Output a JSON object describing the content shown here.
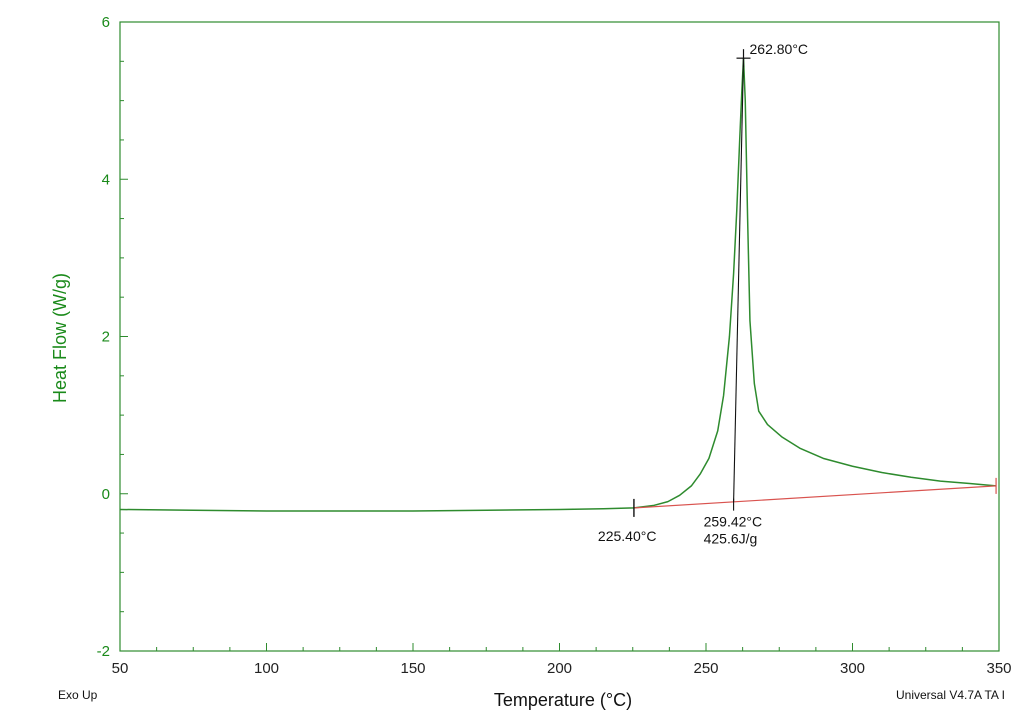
{
  "chart_data": {
    "type": "line",
    "xlabel": "Temperature (°C)",
    "ylabel": "Heat Flow (W/g)",
    "xlim": [
      50,
      350
    ],
    "ylim": [
      -2,
      6
    ],
    "xticks": [
      "50",
      "100",
      "150",
      "200",
      "250",
      "300",
      "350"
    ],
    "yticks": [
      "-2",
      "0",
      "2",
      "4",
      "6"
    ],
    "grid": false,
    "colors": {
      "curve": "#2e8b2e",
      "baseline": "#d9534f",
      "annotation": "#111111",
      "frame": "#2e8b2e"
    },
    "series": [
      {
        "x": [
          50,
          75,
          100,
          125,
          150,
          175,
          200,
          215,
          225.4,
          232,
          237,
          241,
          245,
          248,
          251,
          254,
          256,
          258,
          259.42,
          260.5,
          261.5,
          262.2,
          262.8,
          263.4,
          264.2,
          265,
          266.5,
          268,
          271,
          276,
          282,
          290,
          300,
          310,
          320,
          330,
          340,
          349
        ],
        "y": [
          -0.2,
          -0.21,
          -0.22,
          -0.22,
          -0.22,
          -0.21,
          -0.2,
          -0.19,
          -0.18,
          -0.15,
          -0.1,
          -0.02,
          0.1,
          0.25,
          0.45,
          0.8,
          1.25,
          2.0,
          2.8,
          3.6,
          4.5,
          5.1,
          5.54,
          5.0,
          3.5,
          2.2,
          1.4,
          1.05,
          0.88,
          0.72,
          0.58,
          0.45,
          0.35,
          0.27,
          0.21,
          0.16,
          0.13,
          0.1
        ]
      }
    ],
    "baseline": {
      "x": [
        225.4,
        349
      ],
      "y": [
        -0.18,
        0.1
      ]
    },
    "annotations": [
      {
        "label": "262.80°C",
        "x": 262.8,
        "y": 5.54
      },
      {
        "label": "225.40°C",
        "x": 225.4,
        "y": -0.18
      },
      {
        "label": "259.42°C",
        "x": 259.42,
        "y": -0.1
      },
      {
        "label": "425.6J/g",
        "x": 259.42,
        "y": -0.1
      }
    ]
  },
  "footer": {
    "left": "Exo Up",
    "right": "Universal V4.7A TA I"
  }
}
